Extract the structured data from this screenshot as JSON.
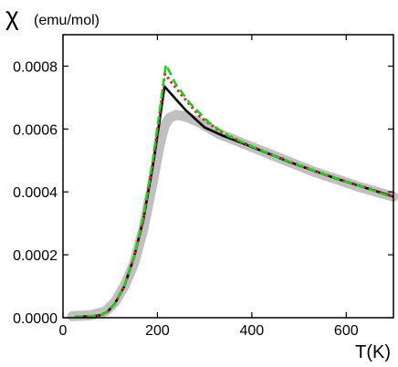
{
  "chart_data": {
    "type": "line",
    "title": "",
    "xlabel": "T(K)",
    "ylabel": {
      "symbol": "χ",
      "unit": "(emu/mol)"
    },
    "xlim": [
      0,
      700
    ],
    "ylim": [
      0,
      0.0009
    ],
    "x_ticks": [
      0,
      200,
      400,
      600
    ],
    "x_tick_labels": [
      "0",
      "200",
      "400",
      "600"
    ],
    "y_ticks": [
      0,
      0.0002,
      0.0004,
      0.0006,
      0.0008
    ],
    "y_tick_labels": [
      "0.0000",
      "0.0002",
      "0.0004",
      "0.0006",
      "0.0008"
    ],
    "grid": false,
    "legend": "none",
    "series": [
      {
        "color": "#c0c0c0",
        "style": "thick-solid",
        "points": [
          [
            20,
            5e-06
          ],
          [
            60,
            8e-06
          ],
          [
            90,
            2e-05
          ],
          [
            110,
            5e-05
          ],
          [
            130,
            0.0001
          ],
          [
            150,
            0.00017
          ],
          [
            170,
            0.00028
          ],
          [
            190,
            0.00043
          ],
          [
            205,
            0.00055
          ],
          [
            215,
            0.00061
          ],
          [
            225,
            0.000635
          ],
          [
            240,
            0.000645
          ],
          [
            260,
            0.00064
          ],
          [
            290,
            0.00062
          ],
          [
            330,
            0.000585
          ],
          [
            380,
            0.000555
          ],
          [
            430,
            0.000525
          ],
          [
            480,
            0.000495
          ],
          [
            530,
            0.000465
          ],
          [
            580,
            0.00044
          ],
          [
            630,
            0.000415
          ],
          [
            700,
            0.000385
          ]
        ]
      },
      {
        "color": "#000000",
        "style": "solid",
        "points": [
          [
            25,
            3e-06
          ],
          [
            60,
            4e-06
          ],
          [
            80,
            8e-06
          ],
          [
            95,
            2e-05
          ],
          [
            110,
            4.5e-05
          ],
          [
            130,
            0.0001
          ],
          [
            150,
            0.00019
          ],
          [
            170,
            0.00031
          ],
          [
            190,
            0.00048
          ],
          [
            205,
            0.00063
          ],
          [
            215,
            0.000735
          ],
          [
            260,
            0.00066
          ],
          [
            300,
            0.000605
          ],
          [
            340,
            0.000578
          ],
          [
            380,
            0.000555
          ],
          [
            430,
            0.000525
          ],
          [
            480,
            0.000495
          ],
          [
            530,
            0.000468
          ],
          [
            580,
            0.000442
          ],
          [
            630,
            0.000418
          ],
          [
            700,
            0.000385
          ]
        ]
      },
      {
        "color": "#dd2222",
        "style": "dotted",
        "points": [
          [
            25,
            3e-06
          ],
          [
            60,
            4e-06
          ],
          [
            80,
            8e-06
          ],
          [
            95,
            2e-05
          ],
          [
            110,
            4.5e-05
          ],
          [
            130,
            0.0001
          ],
          [
            150,
            0.00019
          ],
          [
            170,
            0.00031
          ],
          [
            190,
            0.00049
          ],
          [
            205,
            0.00065
          ],
          [
            216,
            0.000775
          ],
          [
            250,
            0.00071
          ],
          [
            290,
            0.00064
          ],
          [
            330,
            0.000595
          ],
          [
            380,
            0.000557
          ],
          [
            430,
            0.000526
          ],
          [
            480,
            0.000496
          ],
          [
            530,
            0.000469
          ],
          [
            580,
            0.000443
          ],
          [
            630,
            0.000419
          ],
          [
            700,
            0.000386
          ]
        ]
      },
      {
        "color": "#22cc22",
        "style": "dashed",
        "points": [
          [
            25,
            3e-06
          ],
          [
            60,
            4e-06
          ],
          [
            80,
            8e-06
          ],
          [
            95,
            2e-05
          ],
          [
            110,
            4.5e-05
          ],
          [
            130,
            0.0001
          ],
          [
            150,
            0.00019
          ],
          [
            170,
            0.00032
          ],
          [
            190,
            0.0005
          ],
          [
            205,
            0.00066
          ],
          [
            218,
            0.000805
          ],
          [
            240,
            0.00074
          ],
          [
            270,
            0.00068
          ],
          [
            310,
            0.00062
          ],
          [
            350,
            0.000578
          ],
          [
            400,
            0.000545
          ],
          [
            450,
            0.000513
          ],
          [
            500,
            0.000485
          ],
          [
            550,
            0.000458
          ],
          [
            600,
            0.000433
          ],
          [
            650,
            0.000408
          ],
          [
            700,
            0.000382
          ]
        ]
      }
    ]
  }
}
